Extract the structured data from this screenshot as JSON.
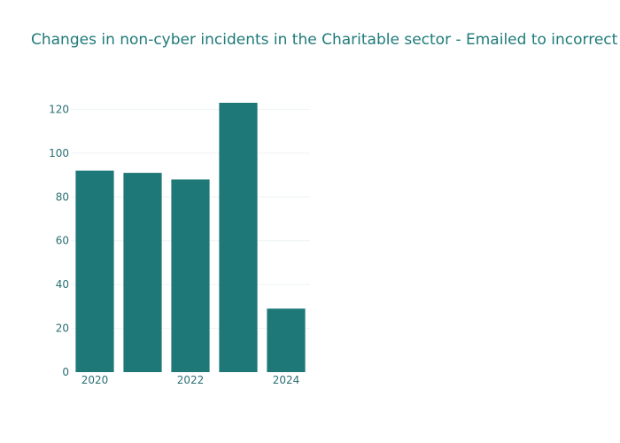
{
  "chart_data": {
    "type": "bar",
    "title": "Changes in non-cyber incidents in the Charitable sector - Emailed to incorrect recipient",
    "xlabel": "",
    "ylabel": "",
    "x": [
      2020,
      2021,
      2022,
      2023,
      2024
    ],
    "values": [
      92,
      91,
      88,
      123,
      29
    ],
    "x_tick_labels": [
      "2020",
      "2022",
      "2024"
    ],
    "y_ticks": [
      0,
      20,
      40,
      60,
      80,
      100,
      120
    ],
    "ylim": [
      0,
      123
    ],
    "grid": true,
    "legend": "none",
    "color": "#1e7878"
  }
}
